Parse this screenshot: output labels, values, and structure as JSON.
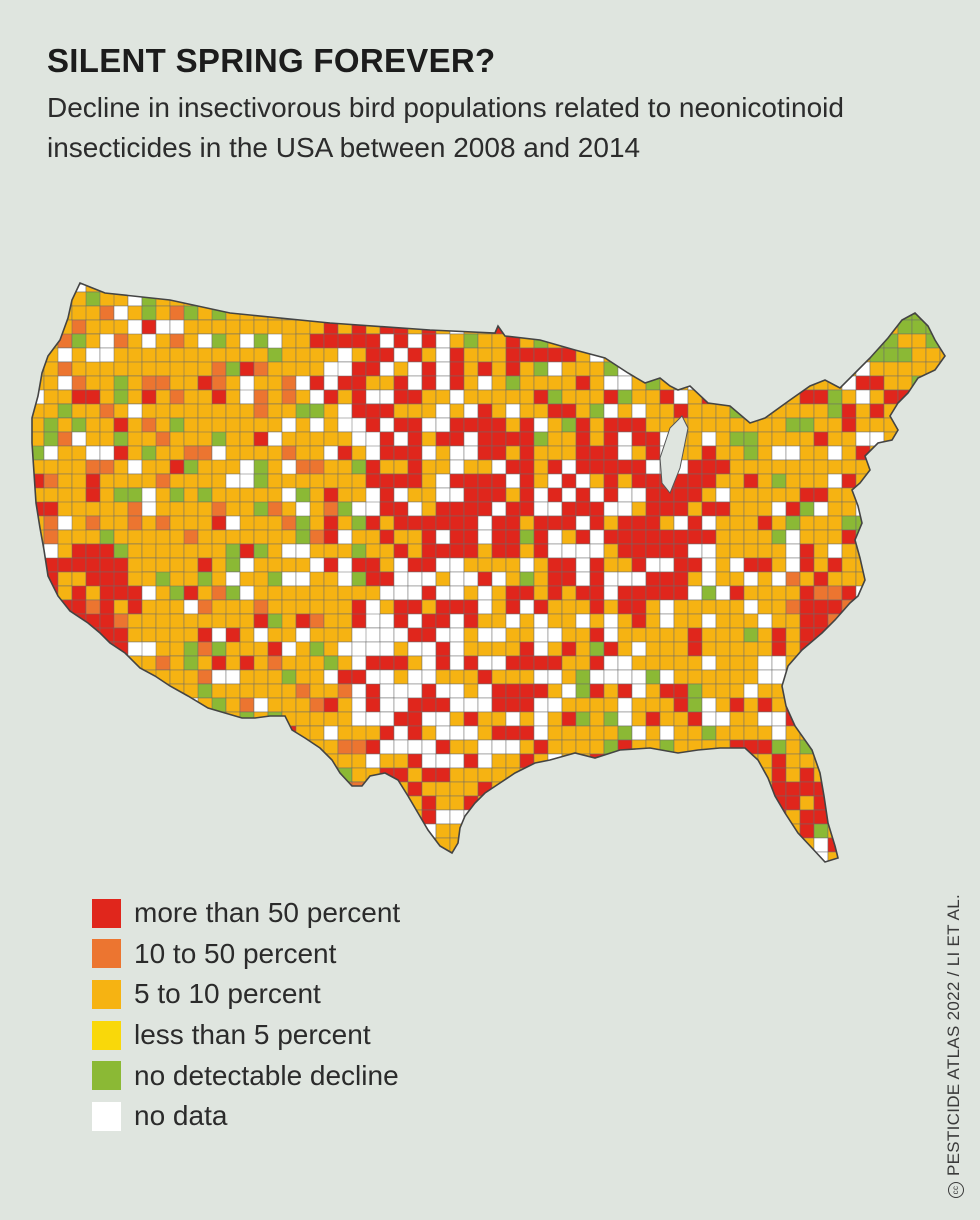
{
  "header": {
    "title": "SILENT SPRING FOREVER?",
    "subtitle": "Decline in insectivorous bird populations related to neonicotinoid insecticides in the USA between 2008 and 2014"
  },
  "colors": {
    "background": "#dfe5df",
    "more_than_50": "#e0261c",
    "ten_to_50": "#ec7530",
    "five_to_10": "#f6b312",
    "less_than_5": "#f9d80a",
    "no_decline": "#8bb935",
    "no_data": "#ffffff",
    "county_border": "#6b6b6b"
  },
  "legend": {
    "items": [
      {
        "label": "more than 50 percent",
        "color": "#e0261c"
      },
      {
        "label": "10 to 50 percent",
        "color": "#ec7530"
      },
      {
        "label": "5 to 10 percent",
        "color": "#f6b312"
      },
      {
        "label": "less than 5 percent",
        "color": "#f9d80a"
      },
      {
        "label": "no detectable decline",
        "color": "#8bb935"
      },
      {
        "label": "no data",
        "color": "#ffffff"
      }
    ]
  },
  "credit": {
    "icon": "creative-commons-icon",
    "text": "PESTICIDE ATLAS 2022 / LI ET AL."
  }
}
